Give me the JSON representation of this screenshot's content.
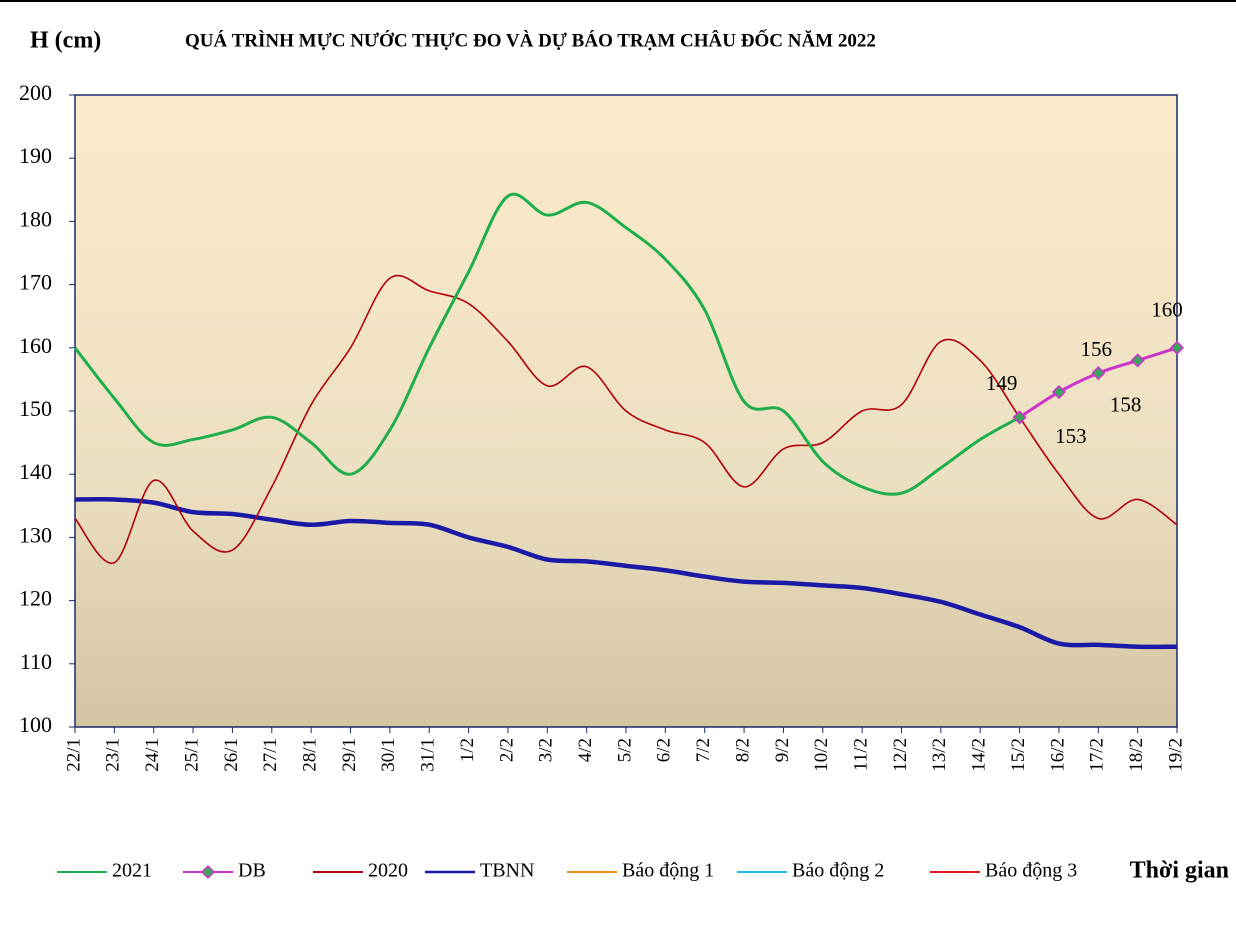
{
  "chart_data": {
    "type": "line",
    "title": "QUÁ TRÌNH MỰC NƯỚC THỰC ĐO VÀ DỰ BÁO TRẠM CHÂU ĐỐC NĂM 2022",
    "y_label": "H (cm)",
    "x_label": "Thời gian",
    "categories": [
      "22/1",
      "23/1",
      "24/1",
      "25/1",
      "26/1",
      "27/1",
      "28/1",
      "29/1",
      "30/1",
      "31/1",
      "1/2",
      "2/2",
      "3/2",
      "4/2",
      "5/2",
      "6/2",
      "7/2",
      "8/2",
      "9/2",
      "10/2",
      "11/2",
      "12/2",
      "13/2",
      "14/2",
      "15/2",
      "16/2",
      "17/2",
      "18/2",
      "19/2"
    ],
    "ylim": [
      100,
      200
    ],
    "yticks": [
      100,
      110,
      120,
      130,
      140,
      150,
      160,
      170,
      180,
      190,
      200
    ],
    "series": [
      {
        "name": "2021",
        "color": "#1fae4b",
        "values": [
          160,
          152,
          145,
          145.5,
          147,
          149,
          145,
          140,
          147,
          160,
          172,
          184,
          181,
          183,
          179,
          174,
          166,
          151.5,
          150,
          142,
          138,
          137,
          141,
          145.5,
          149,
          null,
          null,
          null,
          null
        ]
      },
      {
        "name": "DB",
        "color": "#cc33cc",
        "marker_color": "#3aa55a",
        "values": [
          null,
          null,
          null,
          null,
          null,
          null,
          null,
          null,
          null,
          null,
          null,
          null,
          null,
          null,
          null,
          null,
          null,
          null,
          null,
          null,
          null,
          null,
          null,
          null,
          149,
          153,
          156,
          158,
          160
        ]
      },
      {
        "name": "2020",
        "color": "#b0000a",
        "values": [
          133,
          126,
          139,
          131,
          128,
          138,
          151,
          160,
          171,
          169,
          167,
          161,
          154,
          157,
          150,
          147,
          145,
          138,
          144,
          145,
          150,
          151,
          161,
          158,
          149,
          140,
          133,
          136,
          132
        ]
      },
      {
        "name": "TBNN",
        "color": "#1a1aa6",
        "values": [
          136,
          136,
          135.5,
          134,
          133.7,
          132.8,
          132,
          132.6,
          132.3,
          132,
          130,
          128.5,
          126.5,
          126.2,
          125.5,
          124.8,
          123.8,
          123,
          122.8,
          122.4,
          122,
          121,
          119.8,
          117.8,
          115.8,
          113.2,
          113,
          112.7,
          112.7
        ]
      },
      {
        "name": "Báo động 1",
        "color": "#f08a1c",
        "values": [
          null,
          null,
          null,
          null,
          null,
          null,
          null,
          null,
          null,
          null,
          null,
          null,
          null,
          null,
          null,
          null,
          null,
          null,
          null,
          null,
          null,
          null,
          null,
          null,
          null,
          null,
          null,
          null,
          null
        ]
      },
      {
        "name": "Báo động 2",
        "color": "#22b8e8",
        "values": [
          null,
          null,
          null,
          null,
          null,
          null,
          null,
          null,
          null,
          null,
          null,
          null,
          null,
          null,
          null,
          null,
          null,
          null,
          null,
          null,
          null,
          null,
          null,
          null,
          null,
          null,
          null,
          null,
          null
        ]
      },
      {
        "name": "Báo động 3",
        "color": "#e8141c",
        "values": [
          null,
          null,
          null,
          null,
          null,
          null,
          null,
          null,
          null,
          null,
          null,
          null,
          null,
          null,
          null,
          null,
          null,
          null,
          null,
          null,
          null,
          null,
          null,
          null,
          null,
          null,
          null,
          null,
          null
        ]
      }
    ]
  }
}
